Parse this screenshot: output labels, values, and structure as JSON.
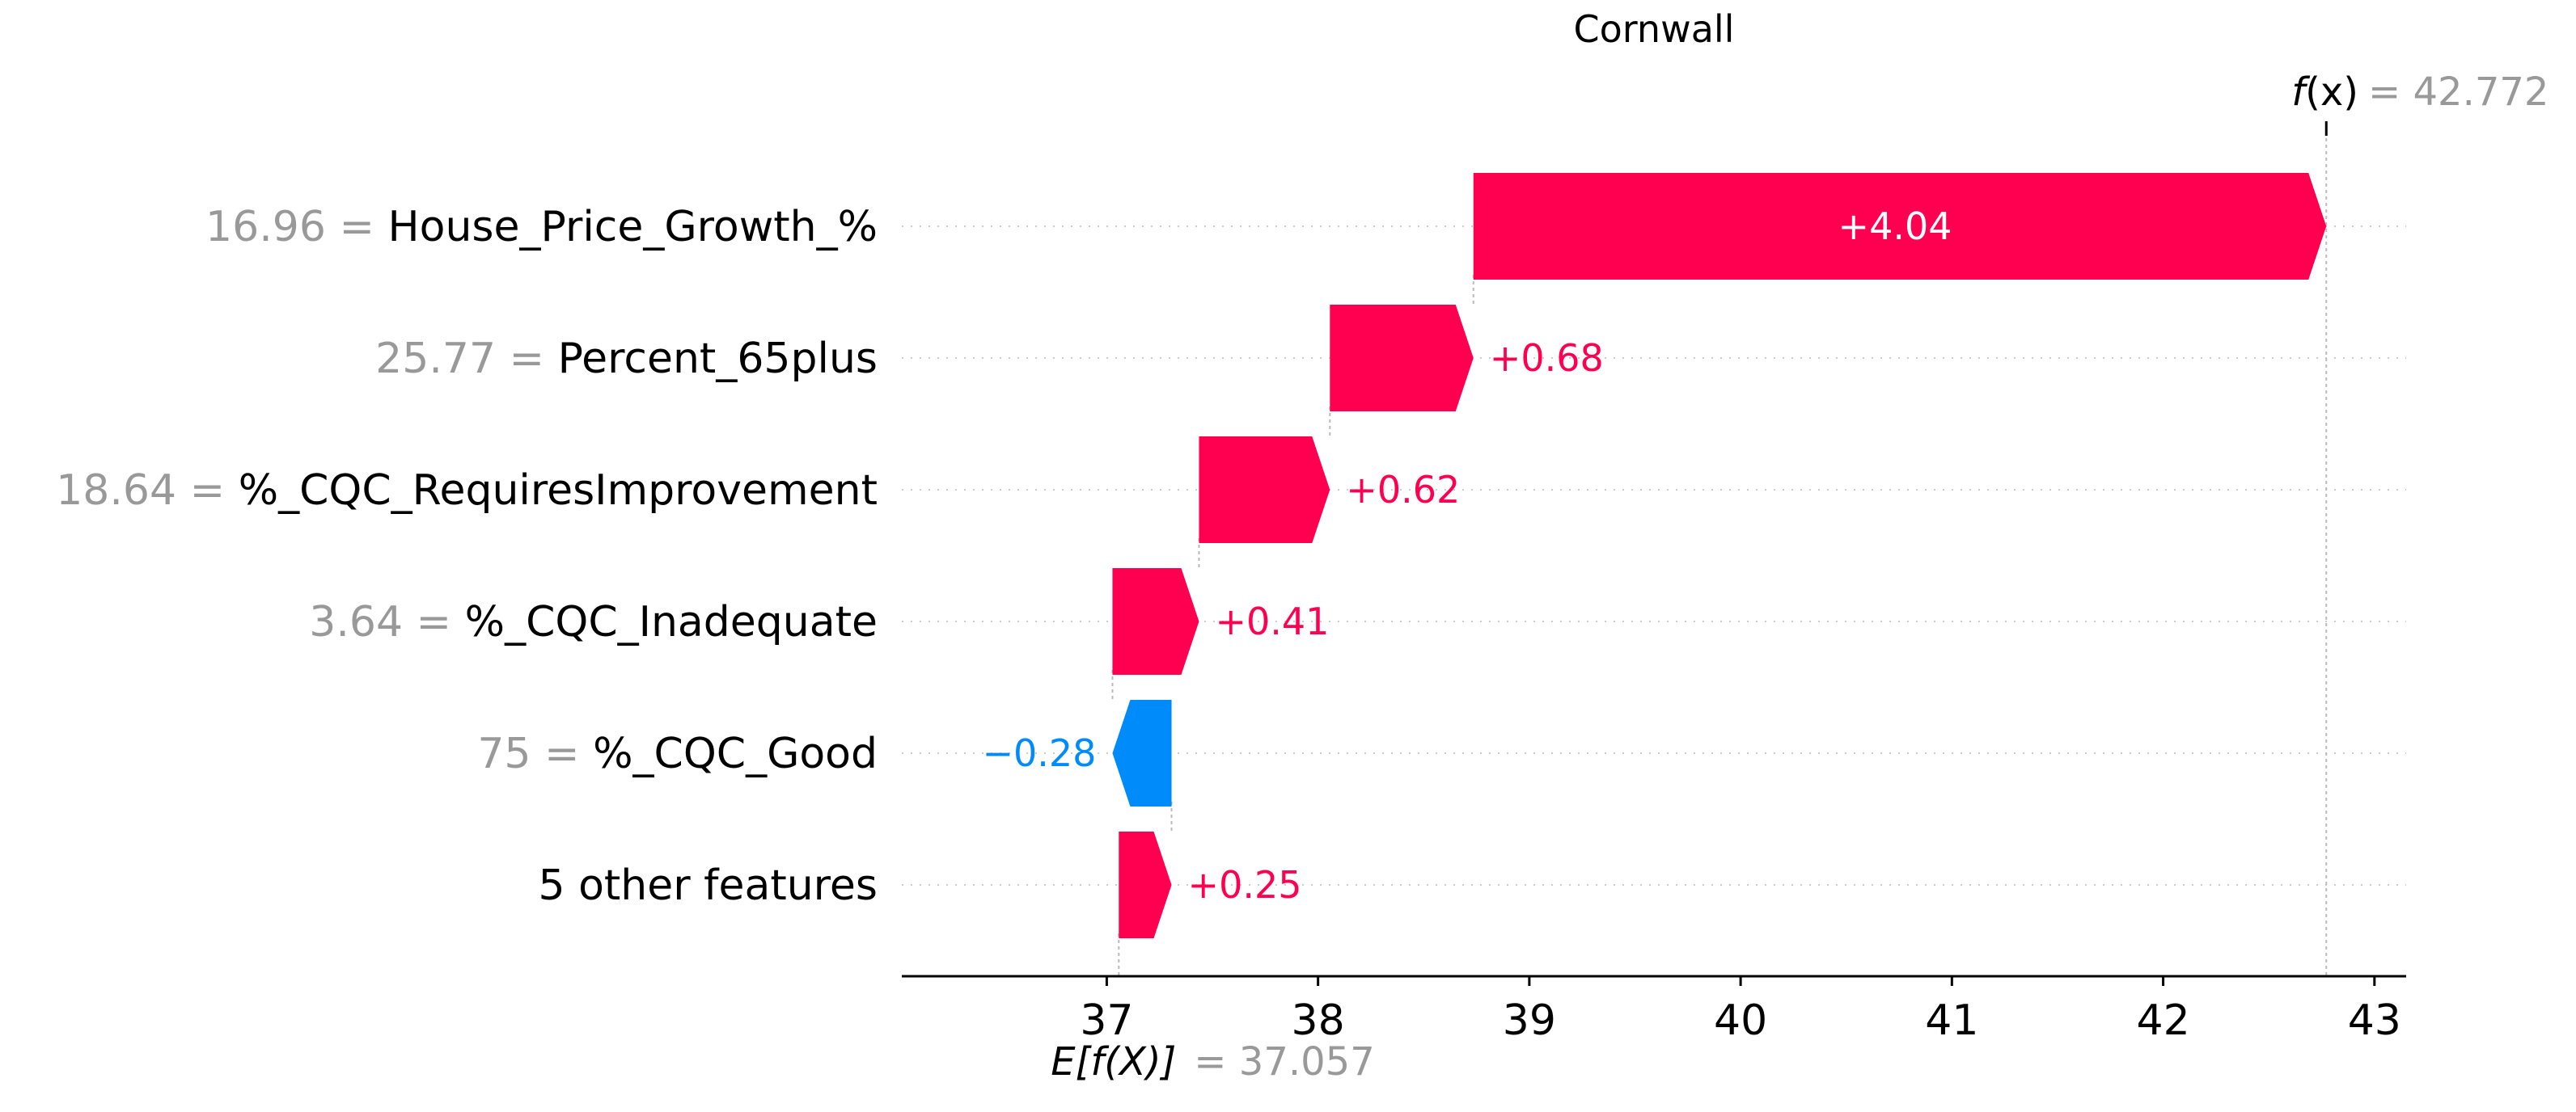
{
  "chart_data": {
    "type": "waterfall",
    "title": "Cornwall",
    "fx": {
      "label_f": "f",
      "label_x": "(x)",
      "eq": "= 42.772",
      "value": 42.772
    },
    "base": {
      "label": "E[f(X)]",
      "eq": "= 37.057",
      "value": 37.057
    },
    "features": [
      {
        "value": "16.96",
        "name": "House_Price_Growth_%",
        "contribution": 4.04,
        "label": "+4.04"
      },
      {
        "value": "25.77",
        "name": "Percent_65plus",
        "contribution": 0.68,
        "label": "+0.68"
      },
      {
        "value": "18.64",
        "name": "%_CQC_RequiresImprovement",
        "contribution": 0.62,
        "label": "+0.62"
      },
      {
        "value": "3.64",
        "name": "%_CQC_Inadequate",
        "contribution": 0.41,
        "label": "+0.41"
      },
      {
        "value": "75",
        "name": "%_CQC_Good",
        "contribution": -0.28,
        "label": "−0.28"
      },
      {
        "value": "",
        "name": "5 other features",
        "contribution": 0.25,
        "label": "+0.25"
      }
    ],
    "xticks": [
      37,
      38,
      39,
      40,
      41,
      42,
      43
    ],
    "xlim": [
      36.03,
      43.15
    ],
    "colors": {
      "positive": "#ff0051",
      "negative": "#008bfb",
      "value_text": "#999999"
    }
  }
}
